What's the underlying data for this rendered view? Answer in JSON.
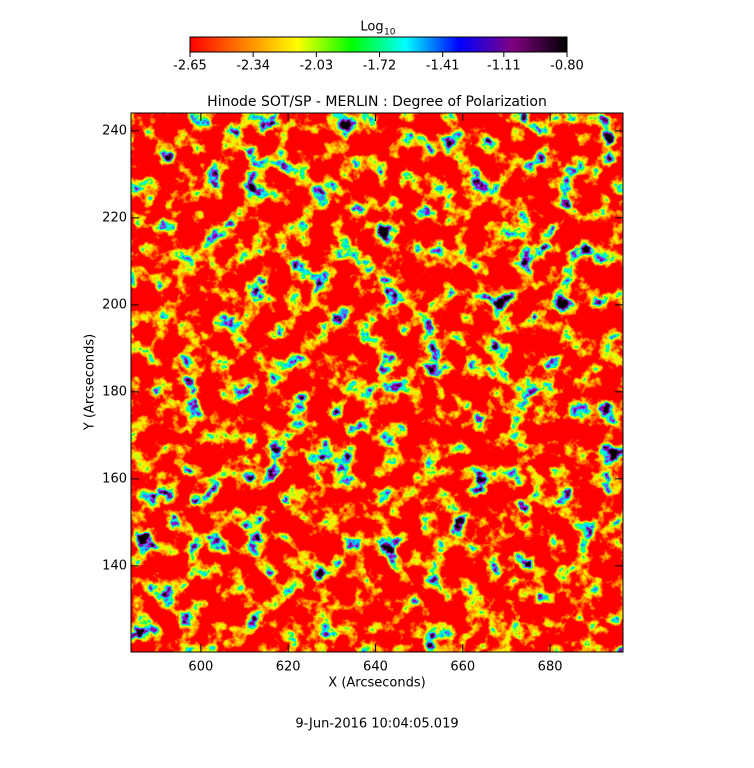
{
  "chart_data": {
    "type": "heatmap",
    "title": "Hinode SOT/SP - MERLIN : Degree of Polarization",
    "x_label": "X (Arcseconds)",
    "y_label": "Y (Arcseconds)",
    "footer": "9-Jun-2016 10:04:05.019",
    "colorbar_label": "Log",
    "colorbar_label_subscript": "10",
    "colormap": [
      "#ff0000",
      "#ff8000",
      "#ffff00",
      "#00ff00",
      "#00ffff",
      "#0000ff",
      "#800080",
      "#000000"
    ],
    "colorbar_lim": [
      -2.65,
      -0.8
    ],
    "colorbar_ticks": [
      -2.65,
      -2.34,
      -2.03,
      -1.72,
      -1.41,
      -1.11,
      {
        "value": -0.8,
        "label": "-0.80"
      }
    ],
    "xlim": [
      584,
      696.7
    ],
    "ylim": [
      120.2,
      244.1
    ],
    "xticks": [
      600,
      620,
      640,
      660,
      680
    ],
    "yticks": [
      140,
      160,
      180,
      200,
      220,
      240
    ]
  }
}
